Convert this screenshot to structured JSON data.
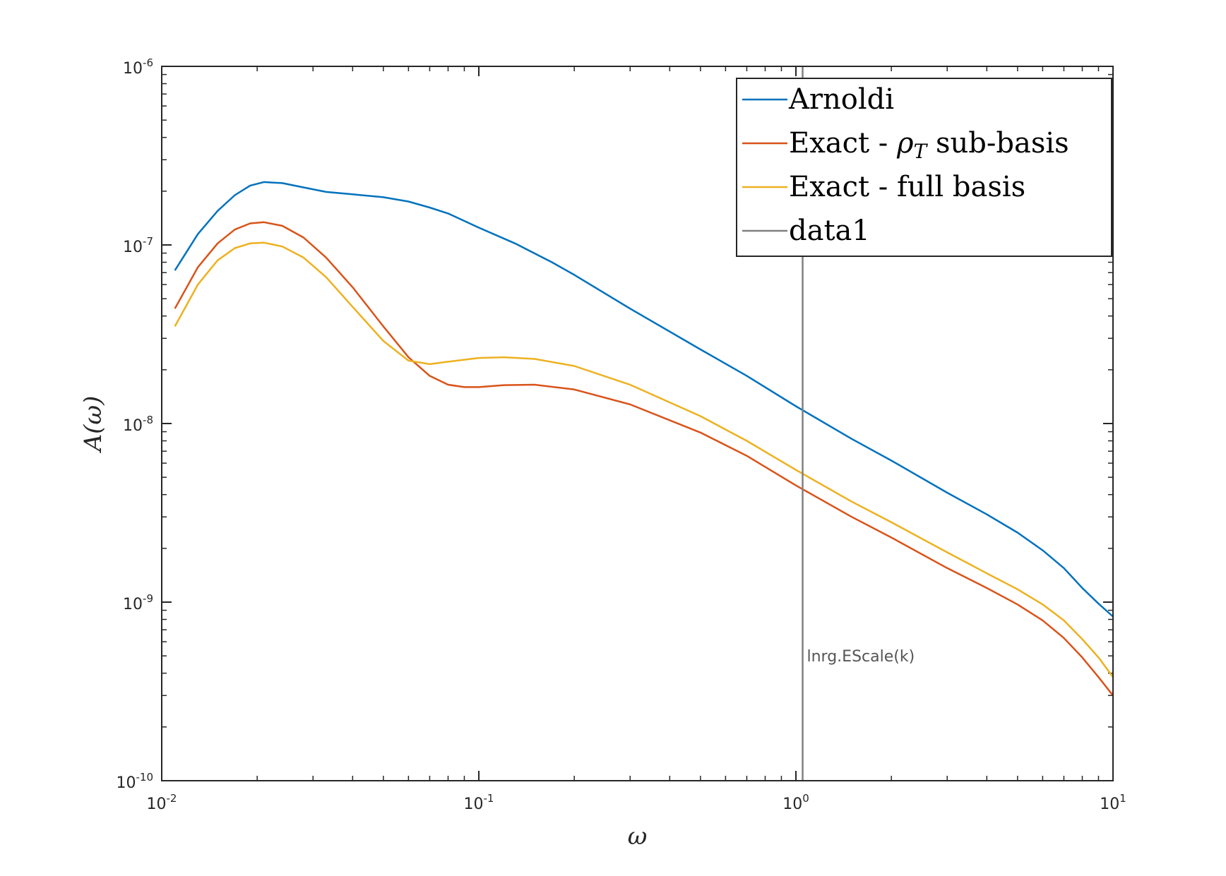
{
  "chart_data": {
    "type": "line",
    "xscale": "log",
    "yscale": "log",
    "xlim": [
      0.01,
      10
    ],
    "ylim": [
      1e-10,
      1e-06
    ],
    "xlabel": "ω",
    "ylabel": "A(ω)",
    "x_ticks": [
      {
        "base": "10",
        "exp": "-2"
      },
      {
        "base": "10",
        "exp": "-1"
      },
      {
        "base": "10",
        "exp": "0"
      },
      {
        "base": "10",
        "exp": "1"
      }
    ],
    "y_ticks": [
      {
        "base": "10",
        "exp": "-10"
      },
      {
        "base": "10",
        "exp": "-9"
      },
      {
        "base": "10",
        "exp": "-8"
      },
      {
        "base": "10",
        "exp": "-7"
      },
      {
        "base": "10",
        "exp": "-6"
      }
    ],
    "legend_position": "top-right",
    "series": [
      {
        "name": "Arnoldi",
        "color": "#0072BD",
        "x": [
          0.011,
          0.013,
          0.015,
          0.017,
          0.019,
          0.021,
          0.024,
          0.028,
          0.033,
          0.04,
          0.05,
          0.06,
          0.07,
          0.08,
          0.1,
          0.13,
          0.17,
          0.2,
          0.3,
          0.5,
          0.7,
          1.0,
          1.5,
          2.0,
          3.0,
          4.0,
          5.0,
          6.0,
          7.0,
          8.0,
          9.0,
          10.0
        ],
        "y": [
          7.2e-08,
          1.15e-07,
          1.55e-07,
          1.9e-07,
          2.15e-07,
          2.25e-07,
          2.22e-07,
          2.1e-07,
          1.98e-07,
          1.92e-07,
          1.85e-07,
          1.75e-07,
          1.62e-07,
          1.5e-07,
          1.25e-07,
          1.02e-07,
          8e-08,
          6.8e-08,
          4.4e-08,
          2.6e-08,
          1.85e-08,
          1.25e-08,
          8.2e-09,
          6.2e-09,
          4.1e-09,
          3.1e-09,
          2.45e-09,
          1.95e-09,
          1.55e-09,
          1.2e-09,
          9.8e-10,
          8.3e-10
        ]
      },
      {
        "name": "Exact - ρ_T sub-basis",
        "color": "#D95319",
        "x": [
          0.011,
          0.013,
          0.015,
          0.017,
          0.019,
          0.021,
          0.024,
          0.028,
          0.033,
          0.04,
          0.05,
          0.06,
          0.07,
          0.08,
          0.09,
          0.1,
          0.12,
          0.15,
          0.2,
          0.3,
          0.5,
          0.7,
          1.0,
          1.5,
          2.0,
          3.0,
          4.0,
          5.0,
          6.0,
          7.0,
          8.0,
          9.0,
          10.0
        ],
        "y": [
          4.4e-08,
          7.5e-08,
          1.02e-07,
          1.22e-07,
          1.32e-07,
          1.34e-07,
          1.28e-07,
          1.1e-07,
          8.5e-08,
          5.8e-08,
          3.5e-08,
          2.35e-08,
          1.85e-08,
          1.65e-08,
          1.6e-08,
          1.6e-08,
          1.64e-08,
          1.65e-08,
          1.55e-08,
          1.28e-08,
          8.9e-09,
          6.6e-09,
          4.5e-09,
          3e-09,
          2.3e-09,
          1.55e-09,
          1.2e-09,
          9.7e-10,
          7.9e-10,
          6.3e-10,
          4.9e-10,
          3.8e-10,
          3e-10
        ]
      },
      {
        "name": "Exact - full basis",
        "color": "#EDB120",
        "x": [
          0.011,
          0.013,
          0.015,
          0.017,
          0.019,
          0.021,
          0.024,
          0.028,
          0.033,
          0.04,
          0.05,
          0.06,
          0.07,
          0.08,
          0.1,
          0.12,
          0.15,
          0.2,
          0.3,
          0.5,
          0.7,
          1.0,
          1.5,
          2.0,
          3.0,
          4.0,
          5.0,
          6.0,
          7.0,
          8.0,
          9.0,
          10.0
        ],
        "y": [
          3.5e-08,
          6e-08,
          8.2e-08,
          9.6e-08,
          1.02e-07,
          1.03e-07,
          9.8e-08,
          8.5e-08,
          6.6e-08,
          4.5e-08,
          2.9e-08,
          2.25e-08,
          2.15e-08,
          2.22e-08,
          2.33e-08,
          2.35e-08,
          2.3e-08,
          2.1e-08,
          1.65e-08,
          1.1e-08,
          8e-09,
          5.5e-09,
          3.65e-09,
          2.8e-09,
          1.9e-09,
          1.45e-09,
          1.18e-09,
          9.7e-10,
          7.9e-10,
          6.2e-10,
          4.9e-10,
          3.8e-10
        ]
      },
      {
        "name": "data1",
        "color": "#808080",
        "type": "vertical-line",
        "x_value": 1.05
      }
    ],
    "annotations": [
      {
        "text": "lnrg.EScale(k)",
        "x": 1.05,
        "y": 5e-10
      }
    ]
  }
}
